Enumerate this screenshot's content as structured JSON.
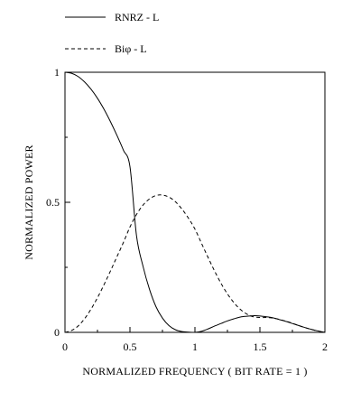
{
  "chart_data": {
    "type": "line",
    "title": "",
    "xlabel": "NORMALIZED FREQUENCY ( BIT RATE = 1 )",
    "ylabel": "NORMALIZED  POWER",
    "xlim": [
      0,
      2
    ],
    "ylim": [
      0,
      1
    ],
    "x_ticks": [
      0,
      0.5,
      1,
      1.5,
      2
    ],
    "x_tick_labels": [
      "0",
      "0.5",
      "1",
      "1.5",
      "2"
    ],
    "y_ticks": [
      0,
      0.5,
      1
    ],
    "y_tick_labels": [
      "0",
      "0.5",
      "1"
    ],
    "grid": false,
    "legend_position": "top-left, above plot",
    "series": [
      {
        "name": "RNRZ - L",
        "style": "solid",
        "color": "#000000",
        "x": [
          0,
          0.05,
          0.1,
          0.15,
          0.2,
          0.25,
          0.3,
          0.35,
          0.4,
          0.45,
          0.5,
          0.55,
          0.6,
          0.65,
          0.7,
          0.75,
          0.8,
          0.85,
          0.9,
          0.95,
          1.0,
          1.05,
          1.1,
          1.15,
          1.2,
          1.25,
          1.3,
          1.35,
          1.4,
          1.45,
          1.5,
          1.55,
          1.6,
          1.65,
          1.7,
          1.75,
          1.8,
          1.85,
          1.9,
          1.95,
          2.0
        ],
        "y": [
          1.0,
          0.996,
          0.984,
          0.963,
          0.935,
          0.9,
          0.858,
          0.81,
          0.757,
          0.7,
          0.637,
          0.373,
          0.255,
          0.166,
          0.099,
          0.055,
          0.026,
          0.01,
          0.003,
          0.001,
          0.0,
          0.004,
          0.013,
          0.024,
          0.034,
          0.044,
          0.052,
          0.059,
          0.062,
          0.064,
          0.063,
          0.06,
          0.056,
          0.049,
          0.042,
          0.034,
          0.026,
          0.018,
          0.011,
          0.005,
          0.0
        ]
      },
      {
        "name": "Biφ - L",
        "style": "dashed",
        "color": "#000000",
        "x": [
          0,
          0.05,
          0.1,
          0.15,
          0.2,
          0.25,
          0.3,
          0.35,
          0.4,
          0.45,
          0.5,
          0.55,
          0.6,
          0.65,
          0.7,
          0.75,
          0.8,
          0.85,
          0.9,
          0.95,
          1.0,
          1.05,
          1.1,
          1.15,
          1.2,
          1.25,
          1.3,
          1.35,
          1.4,
          1.45,
          1.5,
          1.55,
          1.6,
          1.65,
          1.7,
          1.75,
          1.8,
          1.85,
          1.9,
          1.95,
          2.0
        ],
        "y": [
          0.0,
          0.007,
          0.024,
          0.052,
          0.089,
          0.133,
          0.183,
          0.236,
          0.291,
          0.346,
          0.405,
          0.453,
          0.489,
          0.513,
          0.526,
          0.528,
          0.52,
          0.502,
          0.474,
          0.439,
          0.397,
          0.343,
          0.289,
          0.237,
          0.189,
          0.148,
          0.114,
          0.088,
          0.07,
          0.06,
          0.057,
          0.057,
          0.055,
          0.05,
          0.043,
          0.035,
          0.026,
          0.018,
          0.011,
          0.005,
          0.0
        ]
      }
    ]
  }
}
